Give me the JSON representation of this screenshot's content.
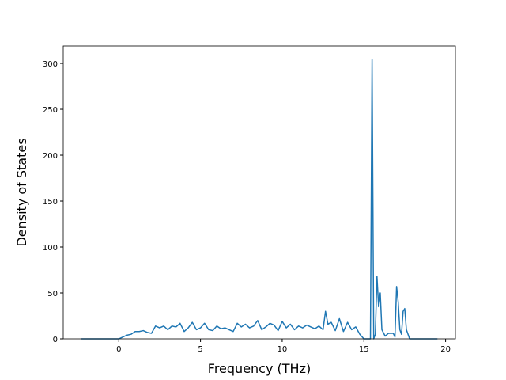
{
  "chart_data": {
    "type": "line",
    "xlabel": "Frequency (THz)",
    "ylabel": "Density of States",
    "x": [
      -2.3,
      -1.5,
      -0.5,
      0,
      0.25,
      0.5,
      0.75,
      1.0,
      1.25,
      1.5,
      1.75,
      2.0,
      2.25,
      2.5,
      2.75,
      3.0,
      3.25,
      3.5,
      3.75,
      4.0,
      4.25,
      4.5,
      4.75,
      5.0,
      5.25,
      5.5,
      5.75,
      6.0,
      6.25,
      6.5,
      6.75,
      7.0,
      7.25,
      7.5,
      7.75,
      8.0,
      8.25,
      8.5,
      8.75,
      9.0,
      9.25,
      9.5,
      9.75,
      10.0,
      10.25,
      10.5,
      10.75,
      11.0,
      11.25,
      11.5,
      11.75,
      12.0,
      12.25,
      12.5,
      12.65,
      12.8,
      13.0,
      13.25,
      13.5,
      13.75,
      14.0,
      14.25,
      14.5,
      14.75,
      15.0,
      15.3,
      15.4,
      15.5,
      15.6,
      15.7,
      15.8,
      15.9,
      16.0,
      16.1,
      16.3,
      16.5,
      16.8,
      16.9,
      17.0,
      17.1,
      17.2,
      17.3,
      17.4,
      17.5,
      17.6,
      17.8,
      18.5,
      19.5
    ],
    "series": [
      {
        "color": "#1f77b4",
        "values": [
          0,
          0,
          0,
          0,
          2,
          4,
          5,
          8,
          8,
          9,
          7,
          6,
          14,
          12,
          14,
          10,
          14,
          13,
          17,
          8,
          12,
          18,
          10,
          12,
          17,
          10,
          9,
          14,
          11,
          12,
          10,
          8,
          17,
          13,
          16,
          12,
          14,
          20,
          10,
          13,
          17,
          15,
          9,
          19,
          12,
          16,
          10,
          14,
          12,
          15,
          13,
          11,
          14,
          10,
          30,
          16,
          18,
          9,
          22,
          8,
          18,
          10,
          13,
          5,
          0,
          0,
          0,
          304,
          0,
          5,
          68,
          35,
          50,
          10,
          3,
          6,
          6,
          2,
          57,
          40,
          10,
          5,
          30,
          33,
          10,
          0,
          0,
          0
        ]
      }
    ],
    "xlim": [
      -3.4,
      20.6
    ],
    "ylim": [
      0,
      319
    ],
    "xticks": [
      0,
      5,
      10,
      15,
      20
    ],
    "yticks": [
      0,
      50,
      100,
      150,
      200,
      250,
      300
    ]
  }
}
